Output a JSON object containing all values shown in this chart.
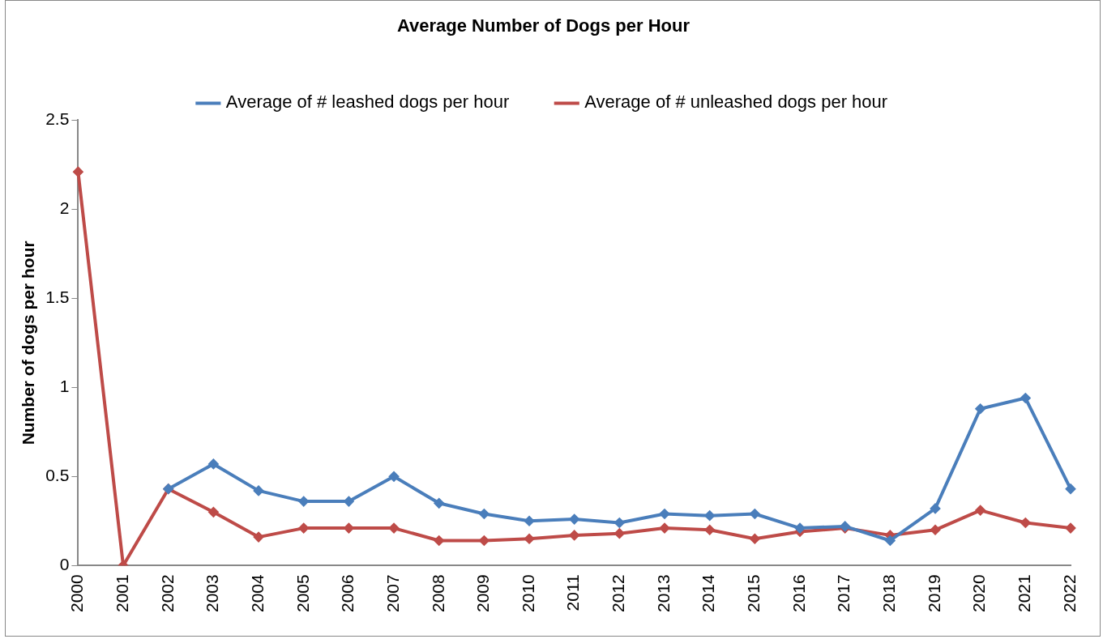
{
  "chart_data": {
    "type": "line",
    "title": "Average Number of Dogs per Hour",
    "ylabel": "Number of dogs per hour",
    "categories": [
      "2000",
      "2001",
      "2002",
      "2003",
      "2004",
      "2005",
      "2006",
      "2007",
      "2008",
      "2009",
      "2010",
      "2011",
      "2012",
      "2013",
      "2014",
      "2015",
      "2016",
      "2017",
      "2018",
      "2019",
      "2020",
      "2021",
      "2022"
    ],
    "series": [
      {
        "name": "Average of # leashed dogs per hour",
        "color": "#4a7ebb",
        "values": [
          null,
          null,
          0.43,
          0.57,
          0.42,
          0.36,
          0.36,
          0.5,
          0.35,
          0.29,
          0.25,
          0.26,
          0.24,
          0.29,
          0.28,
          0.29,
          0.21,
          0.22,
          0.14,
          0.32,
          0.88,
          0.94,
          0.43
        ]
      },
      {
        "name": "Average of # unleashed dogs per hour",
        "color": "#be4b48",
        "values": [
          2.21,
          0,
          0.43,
          0.3,
          0.16,
          0.21,
          0.21,
          0.21,
          0.14,
          0.14,
          0.15,
          0.17,
          0.18,
          0.21,
          0.2,
          0.15,
          0.19,
          0.21,
          0.17,
          0.2,
          0.31,
          0.24,
          0.21
        ]
      }
    ],
    "ylim": [
      0,
      2.5
    ],
    "yticks": [
      0,
      0.5,
      1,
      1.5,
      2,
      2.5
    ],
    "grid": false,
    "legend": "top",
    "marker": "diamond",
    "line_style": "solid"
  }
}
